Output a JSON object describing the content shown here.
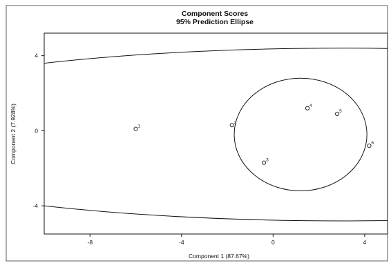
{
  "chart_data": {
    "type": "scatter",
    "title": "Component Scores",
    "subtitle": "95% Prediction Ellipse",
    "xlabel": "Component 1 (87.67%)",
    "ylabel": "Component 2 (7.928%)",
    "xlim": [
      -10,
      5
    ],
    "ylim": [
      -5.5,
      5.2
    ],
    "x_ticks": [
      -8,
      -4,
      0,
      4
    ],
    "y_ticks": [
      -4,
      0,
      4
    ],
    "x_tick_labels": [
      "-8",
      "-4",
      "0",
      "4"
    ],
    "y_tick_labels": [
      "-4",
      "0",
      "4"
    ],
    "grid": false,
    "points": [
      {
        "label": "1",
        "x": -6.0,
        "y": 0.1
      },
      {
        "label": "2",
        "x": -1.8,
        "y": 0.3
      },
      {
        "label": "3",
        "x": -0.4,
        "y": -1.7
      },
      {
        "label": "4",
        "x": 1.5,
        "y": 1.2
      },
      {
        "label": "5",
        "x": 2.8,
        "y": 0.9
      },
      {
        "label": "6",
        "x": 4.2,
        "y": -0.8
      }
    ],
    "inner_ellipse": {
      "cx": 1.2,
      "cy": -0.2,
      "rx": 2.9,
      "ry": 3.0
    },
    "outer_ellipse": {
      "cx": 3.0,
      "cy": -0.2,
      "rx": 23.0,
      "ry": 4.6
    }
  }
}
